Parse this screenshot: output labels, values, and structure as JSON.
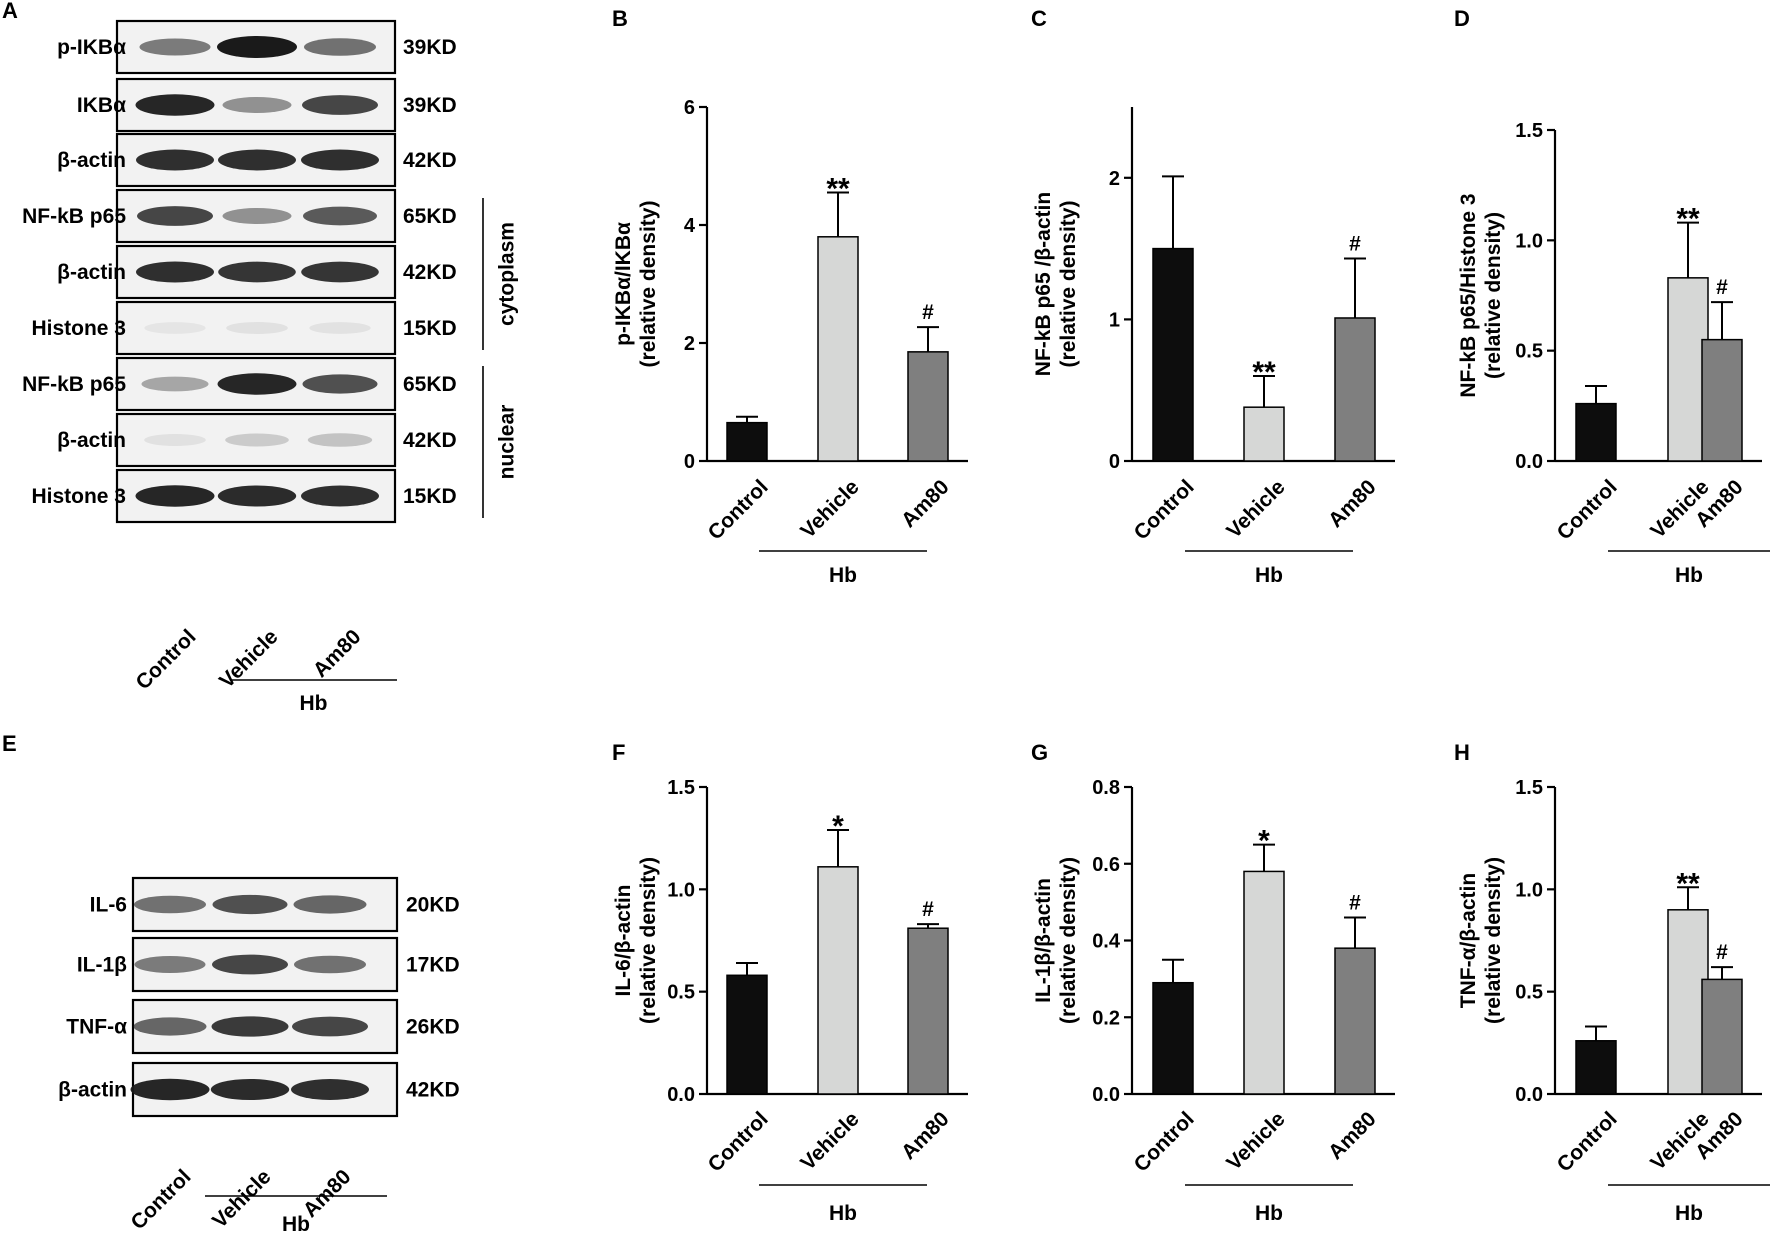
{
  "colors": {
    "Control": "#0d0d0d",
    "Vehicle": "#d6d7d6",
    "Am80": "#7f7f7f",
    "blot_bg": "#f2f2f2",
    "band": "#1a1a1a"
  },
  "blot_panels": [
    {
      "label": "A",
      "lanes": [
        "Control",
        "Vehicle",
        "Am80"
      ],
      "group_label": "Hb",
      "rows": [
        {
          "name": "p-IKBα",
          "size": "39KD",
          "intensity": [
            0.55,
            1.0,
            0.6
          ]
        },
        {
          "name": "IKBα",
          "size": "39KD",
          "intensity": [
            0.95,
            0.45,
            0.8
          ]
        },
        {
          "name": "β-actin",
          "size": "42KD",
          "intensity": [
            0.9,
            0.9,
            0.9
          ]
        },
        {
          "name": "NF-kB p65",
          "size": "65KD",
          "intensity": [
            0.8,
            0.45,
            0.7
          ]
        },
        {
          "name": "β-actin",
          "size": "42KD",
          "intensity": [
            0.9,
            0.88,
            0.88
          ]
        },
        {
          "name": "Histone 3",
          "size": "15KD",
          "intensity": [
            0.06,
            0.08,
            0.07
          ]
        },
        {
          "name": "NF-kB p65",
          "size": "65KD",
          "intensity": [
            0.35,
            0.95,
            0.75
          ]
        },
        {
          "name": "β-actin",
          "size": "42KD",
          "intensity": [
            0.08,
            0.18,
            0.22
          ]
        },
        {
          "name": "Histone 3",
          "size": "15KD",
          "intensity": [
            0.95,
            0.92,
            0.9
          ]
        }
      ],
      "brackets": [
        {
          "label": "cytoplasm",
          "from_row": 3,
          "to_row": 5
        },
        {
          "label": "nuclear",
          "from_row": 6,
          "to_row": 8
        }
      ]
    },
    {
      "label": "E",
      "lanes": [
        "Control",
        "Vehicle",
        "Am80"
      ],
      "group_label": "Hb",
      "rows": [
        {
          "name": "IL-6",
          "size": "20KD",
          "intensity": [
            0.6,
            0.75,
            0.65
          ]
        },
        {
          "name": "IL-1β",
          "size": "17KD",
          "intensity": [
            0.55,
            0.8,
            0.6
          ]
        },
        {
          "name": "TNF-α",
          "size": "26KD",
          "intensity": [
            0.65,
            0.85,
            0.8
          ]
        },
        {
          "name": "β-actin",
          "size": "42KD",
          "intensity": [
            0.95,
            0.92,
            0.9
          ]
        }
      ],
      "brackets": []
    }
  ],
  "chart_data": [
    {
      "label": "B",
      "type": "bar",
      "categories": [
        "Control",
        "Vehicle",
        "Am80"
      ],
      "group_label": "Hb",
      "values": [
        0.65,
        3.8,
        1.85
      ],
      "errors": [
        0.1,
        0.75,
        0.42
      ],
      "annotations": [
        "",
        "**",
        "#"
      ],
      "ylabel": "p-IKBα/IKBα",
      "ylabel2": "(relative density)",
      "ylim": [
        0,
        6
      ],
      "yticks": [
        "0",
        "2",
        "4",
        "6"
      ],
      "ytick_values": [
        0,
        2,
        4,
        6
      ]
    },
    {
      "label": "C",
      "type": "bar",
      "categories": [
        "Control",
        "Vehicle",
        "Am80"
      ],
      "group_label": "Hb",
      "values": [
        1.5,
        0.38,
        1.01
      ],
      "errors": [
        0.51,
        0.22,
        0.42
      ],
      "annotations": [
        "",
        "**",
        "#"
      ],
      "ylabel": "NF-kB p65 /β-actin",
      "ylabel2": "(relative density)",
      "ylim": [
        0,
        2.5
      ],
      "yticks": [
        "0",
        "1",
        "2"
      ],
      "ytick_values": [
        0,
        1,
        2
      ]
    },
    {
      "label": "D",
      "type": "bar",
      "categories": [
        "Control",
        "Vehicle",
        "Am80"
      ],
      "group_label": "Hb",
      "values": [
        0.26,
        0.83,
        0.55
      ],
      "errors": [
        0.08,
        0.25,
        0.17
      ],
      "annotations": [
        "",
        "**",
        "#"
      ],
      "ylabel": "NF-kB p65/Histone 3",
      "ylabel2": "(relative density)",
      "ylim": [
        0,
        1.5
      ],
      "yticks": [
        "0.0",
        "0.5",
        "1.0",
        "1.5"
      ],
      "ytick_values": [
        0,
        0.5,
        1.0,
        1.5
      ]
    },
    {
      "label": "F",
      "type": "bar",
      "categories": [
        "Control",
        "Vehicle",
        "Am80"
      ],
      "group_label": "Hb",
      "values": [
        0.58,
        1.11,
        0.81
      ],
      "errors": [
        0.06,
        0.18,
        0.02
      ],
      "annotations": [
        "",
        "*",
        "#"
      ],
      "ylabel": "IL-6/β-actin",
      "ylabel2": "(relative density)",
      "ylim": [
        0,
        1.5
      ],
      "yticks": [
        "0.0",
        "0.5",
        "1.0",
        "1.5"
      ],
      "ytick_values": [
        0,
        0.5,
        1.0,
        1.5
      ]
    },
    {
      "label": "G",
      "type": "bar",
      "categories": [
        "Control",
        "Vehicle",
        "Am80"
      ],
      "group_label": "Hb",
      "values": [
        0.29,
        0.58,
        0.38
      ],
      "errors": [
        0.06,
        0.07,
        0.08
      ],
      "annotations": [
        "",
        "*",
        "#"
      ],
      "ylabel": "IL-1β/β-actin",
      "ylabel2": "(relative density)",
      "ylim": [
        0,
        0.8
      ],
      "yticks": [
        "0.0",
        "0.2",
        "0.4",
        "0.6",
        "0.8"
      ],
      "ytick_values": [
        0,
        0.2,
        0.4,
        0.6,
        0.8
      ]
    },
    {
      "label": "H",
      "type": "bar",
      "categories": [
        "Control",
        "Vehicle",
        "Am80"
      ],
      "group_label": "Hb",
      "values": [
        0.26,
        0.9,
        0.56
      ],
      "errors": [
        0.07,
        0.11,
        0.06
      ],
      "annotations": [
        "",
        "**",
        "#"
      ],
      "ylabel": "TNF-α/β-actin",
      "ylabel2": "(relative density)",
      "ylim": [
        0,
        1.5
      ],
      "yticks": [
        "0.0",
        "0.5",
        "1.0",
        "1.5"
      ],
      "ytick_values": [
        0,
        0.5,
        1.0,
        1.5
      ]
    }
  ]
}
